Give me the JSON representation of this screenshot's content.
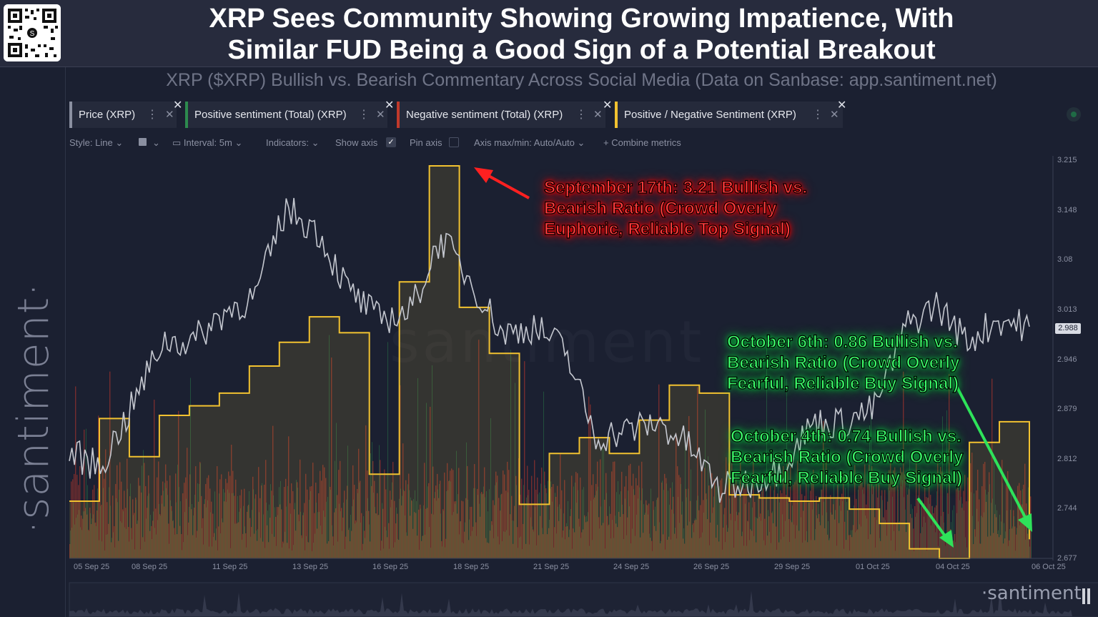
{
  "header": {
    "title_line1": "XRP Sees Community Showing Growing Impatience, With",
    "title_line2": "Similar FUD Being a Good Sign of a Potential Breakout"
  },
  "sidebar": {
    "brand": "·santiment·"
  },
  "subtitle": "XRP ($XRP) Bullish vs. Bearish Commentary Across Social Media (Data on Sanbase: app.santiment.net)",
  "tabs": [
    {
      "label": "Price (XRP)",
      "color": "#8a8fa0"
    },
    {
      "label": "Positive sentiment (Total) (XRP)",
      "color": "#2d8a4e"
    },
    {
      "label": "Negative sentiment (Total) (XRP)",
      "color": "#c0392b"
    },
    {
      "label": "Positive / Negative Sentiment (XRP)",
      "color": "#f2c230"
    }
  ],
  "toolbar": {
    "style": "Style: Line",
    "interval": "Interval: 5m",
    "indicators": "Indicators:",
    "show_axis": "Show axis",
    "pin_axis": "Pin axis",
    "axis_maxmin": "Axis max/min: Auto/Auto",
    "combine": "Combine metrics"
  },
  "watermark": "santiment",
  "navigator_brand": "·santiment·",
  "annotations": {
    "red": "September 17th: 3.21 Bullish vs. Bearish Ratio (Crowd Overly Euphoric, Reliable Top Signal)",
    "green_oct6": "October 6th: 0.86 Bullish vs. Bearish Ratio (Crowd Overly Fearful, Reliable Buy Signal)",
    "green_oct4": "October 4th: 0.74 Bullish vs. Bearish Ratio (Crowd Overly Fearful, Reliable Buy Signal)"
  },
  "chart_data": {
    "type": "line",
    "x_ticks": [
      "05 Sep 25",
      "08 Sep 25",
      "11 Sep 25",
      "13 Sep 25",
      "16 Sep 25",
      "18 Sep 25",
      "21 Sep 25",
      "24 Sep 25",
      "26 Sep 25",
      "29 Sep 25",
      "01 Oct 25",
      "04 Oct 25",
      "06 Oct 25"
    ],
    "price_axis_ticks": [
      "3.215",
      "3.148",
      "3.08",
      "3.013",
      "2.946",
      "2.879",
      "2.812",
      "2.744",
      "2.677"
    ],
    "price_ylim": [
      2.677,
      3.215
    ],
    "current_price_label": "2.988",
    "price_series": {
      "name": "Price (XRP)",
      "color": "#c5c8d0",
      "points": [
        [
          "05 Sep",
          2.82
        ],
        [
          "06 Sep",
          2.8
        ],
        [
          "07 Sep",
          2.88
        ],
        [
          "08 Sep",
          2.97
        ],
        [
          "09 Sep",
          2.97
        ],
        [
          "10 Sep",
          3.01
        ],
        [
          "11 Sep",
          3.03
        ],
        [
          "12 Sep",
          3.15
        ],
        [
          "13 Sep",
          3.12
        ],
        [
          "14 Sep",
          3.04
        ],
        [
          "15 Sep",
          3.0
        ],
        [
          "16 Sep",
          3.01
        ],
        [
          "17 Sep",
          3.11
        ],
        [
          "18 Sep",
          3.05
        ],
        [
          "19 Sep",
          2.98
        ],
        [
          "20 Sep",
          2.99
        ],
        [
          "21 Sep",
          2.96
        ],
        [
          "22 Sep",
          2.84
        ],
        [
          "23 Sep",
          2.85
        ],
        [
          "24 Sep",
          2.86
        ],
        [
          "25 Sep",
          2.83
        ],
        [
          "26 Sep",
          2.77
        ],
        [
          "27 Sep",
          2.78
        ],
        [
          "28 Sep",
          2.8
        ],
        [
          "29 Sep",
          2.86
        ],
        [
          "30 Sep",
          2.86
        ],
        [
          "01 Oct",
          2.88
        ],
        [
          "02 Oct",
          2.99
        ],
        [
          "03 Oct",
          3.02
        ],
        [
          "04 Oct",
          2.97
        ],
        [
          "05 Oct",
          3.0
        ],
        [
          "06 Oct",
          2.99
        ]
      ]
    },
    "ratio_series": {
      "name": "Positive / Negative Sentiment (XRP)",
      "color": "#f2c230",
      "annotated_values": {
        "17 Sep": 3.21,
        "04 Oct": 0.74,
        "06 Oct": 0.86
      },
      "steps": [
        [
          "05 Sep",
          1.1
        ],
        [
          "06 Sep",
          1.62
        ],
        [
          "07 Sep",
          1.38
        ],
        [
          "08 Sep",
          1.64
        ],
        [
          "09 Sep",
          1.7
        ],
        [
          "10 Sep",
          1.78
        ],
        [
          "11 Sep",
          1.95
        ],
        [
          "12 Sep",
          2.1
        ],
        [
          "13 Sep",
          2.26
        ],
        [
          "14 Sep",
          2.16
        ],
        [
          "15 Sep",
          1.27
        ],
        [
          "16 Sep",
          2.48
        ],
        [
          "17 Sep",
          3.21
        ],
        [
          "18 Sep",
          2.32
        ],
        [
          "19 Sep",
          2.03
        ],
        [
          "20 Sep",
          1.08
        ],
        [
          "21 Sep",
          1.4
        ],
        [
          "22 Sep",
          1.5
        ],
        [
          "23 Sep",
          1.4
        ],
        [
          "24 Sep",
          1.61
        ],
        [
          "25 Sep",
          1.83
        ],
        [
          "26 Sep",
          1.78
        ],
        [
          "27 Sep",
          1.14
        ],
        [
          "28 Sep",
          1.12
        ],
        [
          "29 Sep",
          1.1
        ],
        [
          "30 Sep",
          1.12
        ],
        [
          "01 Oct",
          1.05
        ],
        [
          "02 Oct",
          0.96
        ],
        [
          "03 Oct",
          0.8
        ],
        [
          "04 Oct",
          0.74
        ],
        [
          "05 Oct",
          1.47
        ],
        [
          "06 Oct",
          1.6
        ],
        [
          "06 Oct end",
          0.86
        ]
      ]
    },
    "positive_sentiment": {
      "name": "Positive sentiment (Total) (XRP)",
      "color": "#2d8a4e"
    },
    "negative_sentiment": {
      "name": "Negative sentiment (Total) (XRP)",
      "color": "#c0392b"
    },
    "grid": false
  }
}
